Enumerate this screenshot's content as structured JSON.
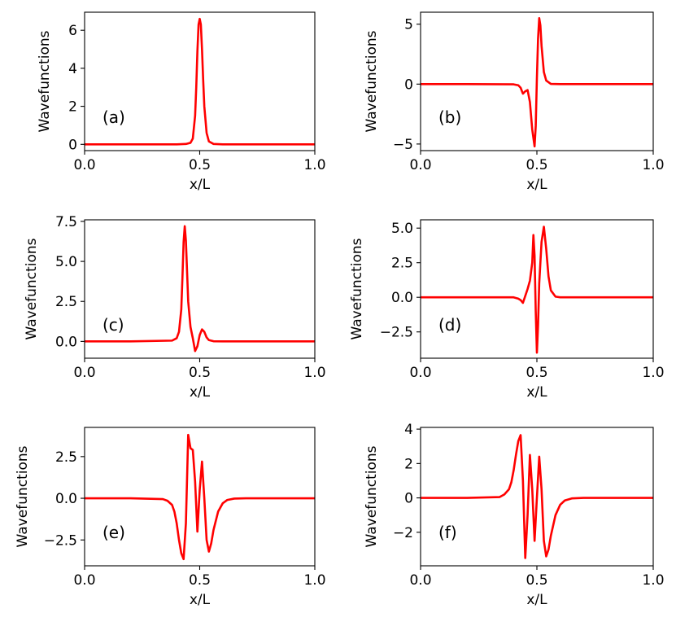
{
  "figure": {
    "type": "line",
    "grid": "none",
    "line_color": "#ff0000",
    "axes_color": "#000000",
    "background": "#ffffff"
  },
  "chart_data": [
    {
      "type": "line",
      "panel_label": "(a)",
      "xlabel": "x/L",
      "ylabel": "Wavefunctions",
      "xlim": [
        0.0,
        1.0
      ],
      "ylim": [
        -0.33,
        6.95
      ],
      "xticks": [
        0.0,
        0.5,
        1.0
      ],
      "xtick_labels": [
        "0.0",
        "0.5",
        "1.0"
      ],
      "yticks": [
        0,
        2,
        4,
        6
      ],
      "ytick_labels": [
        "0",
        "2",
        "4",
        "6"
      ],
      "color": "#ff0000",
      "x": [
        0.0,
        0.2,
        0.4,
        0.44,
        0.46,
        0.47,
        0.48,
        0.485,
        0.49,
        0.495,
        0.5,
        0.505,
        0.51,
        0.515,
        0.52,
        0.53,
        0.54,
        0.56,
        0.6,
        0.8,
        1.0
      ],
      "y": [
        0,
        0,
        0,
        0.02,
        0.08,
        0.3,
        1.5,
        3.0,
        4.9,
        6.3,
        6.6,
        6.3,
        5.0,
        3.4,
        2.0,
        0.6,
        0.15,
        0.02,
        0,
        0,
        0
      ]
    },
    {
      "type": "line",
      "panel_label": "(b)",
      "xlabel": "x/L",
      "ylabel": "Wavefunctions",
      "xlim": [
        0.0,
        1.0
      ],
      "ylim": [
        -5.55,
        6.0
      ],
      "xticks": [
        0.0,
        0.5,
        1.0
      ],
      "xtick_labels": [
        "0.0",
        "0.5",
        "1.0"
      ],
      "yticks": [
        -5,
        0,
        5
      ],
      "ytick_labels": [
        "−5",
        "0",
        "5"
      ],
      "color": "#ff0000",
      "x": [
        0.0,
        0.2,
        0.4,
        0.42,
        0.43,
        0.44,
        0.45,
        0.46,
        0.47,
        0.48,
        0.49,
        0.495,
        0.5,
        0.505,
        0.51,
        0.515,
        0.52,
        0.53,
        0.54,
        0.56,
        0.6,
        0.8,
        1.0
      ],
      "y": [
        0,
        0,
        -0.02,
        -0.1,
        -0.3,
        -0.8,
        -0.6,
        -0.5,
        -1.5,
        -3.8,
        -5.2,
        -3.5,
        0.5,
        3.8,
        5.5,
        4.9,
        3.2,
        1.0,
        0.3,
        0.02,
        0,
        0,
        0
      ]
    },
    {
      "type": "line",
      "panel_label": "(c)",
      "xlabel": "x/L",
      "ylabel": "Wavefunctions",
      "xlim": [
        0.0,
        1.0
      ],
      "ylim": [
        -1.05,
        7.6
      ],
      "xticks": [
        0.0,
        0.5,
        1.0
      ],
      "xtick_labels": [
        "0.0",
        "0.5",
        "1.0"
      ],
      "yticks": [
        0.0,
        2.5,
        5.0,
        7.5
      ],
      "ytick_labels": [
        "0.0",
        "2.5",
        "5.0",
        "7.5"
      ],
      "color": "#ff0000",
      "x": [
        0.0,
        0.2,
        0.38,
        0.4,
        0.41,
        0.42,
        0.425,
        0.43,
        0.435,
        0.44,
        0.45,
        0.46,
        0.47,
        0.48,
        0.49,
        0.5,
        0.51,
        0.52,
        0.53,
        0.54,
        0.56,
        0.6,
        0.8,
        1.0
      ],
      "y": [
        0,
        0,
        0.05,
        0.2,
        0.6,
        2.0,
        4.0,
        6.2,
        7.2,
        6.3,
        2.5,
        0.9,
        0.2,
        -0.6,
        -0.3,
        0.4,
        0.75,
        0.6,
        0.25,
        0.08,
        0.01,
        0,
        0,
        0
      ]
    },
    {
      "type": "line",
      "panel_label": "(d)",
      "xlabel": "x/L",
      "ylabel": "Wavefunctions",
      "xlim": [
        0.0,
        1.0
      ],
      "ylim": [
        -4.4,
        5.6
      ],
      "xticks": [
        0.0,
        0.5,
        1.0
      ],
      "xtick_labels": [
        "0.0",
        "0.5",
        "1.0"
      ],
      "yticks": [
        -2.5,
        0.0,
        2.5,
        5.0
      ],
      "ytick_labels": [
        "−2.5",
        "0.0",
        "2.5",
        "5.0"
      ],
      "color": "#ff0000",
      "x": [
        0.0,
        0.2,
        0.4,
        0.42,
        0.43,
        0.44,
        0.45,
        0.46,
        0.47,
        0.48,
        0.485,
        0.49,
        0.495,
        0.5,
        0.505,
        0.51,
        0.52,
        0.53,
        0.54,
        0.55,
        0.56,
        0.58,
        0.6,
        0.8,
        1.0
      ],
      "y": [
        0,
        0,
        0,
        -0.1,
        -0.2,
        -0.4,
        0.1,
        0.6,
        1.2,
        2.5,
        4.5,
        3.0,
        -1.0,
        -4.0,
        -2.0,
        1.0,
        4.0,
        5.1,
        3.5,
        1.5,
        0.5,
        0.05,
        0,
        0,
        0
      ]
    },
    {
      "type": "line",
      "panel_label": "(e)",
      "xlabel": "x/L",
      "ylabel": "Wavefunctions",
      "xlim": [
        0.0,
        1.0
      ],
      "ylim": [
        -4.05,
        4.25
      ],
      "xticks": [
        0.0,
        0.5,
        1.0
      ],
      "xtick_labels": [
        "0.0",
        "0.5",
        "1.0"
      ],
      "yticks": [
        -2.5,
        0.0,
        2.5
      ],
      "ytick_labels": [
        "−2.5",
        "0.0",
        "2.5"
      ],
      "color": "#ff0000",
      "x": [
        0.0,
        0.2,
        0.34,
        0.36,
        0.38,
        0.39,
        0.4,
        0.41,
        0.42,
        0.43,
        0.44,
        0.45,
        0.46,
        0.47,
        0.48,
        0.49,
        0.5,
        0.51,
        0.52,
        0.53,
        0.54,
        0.55,
        0.56,
        0.58,
        0.6,
        0.62,
        0.65,
        0.7,
        0.8,
        1.0
      ],
      "y": [
        0,
        0,
        -0.05,
        -0.15,
        -0.4,
        -0.8,
        -1.5,
        -2.5,
        -3.3,
        -3.65,
        -1.5,
        3.8,
        3.0,
        2.9,
        1.0,
        -2.0,
        0.5,
        2.2,
        0.0,
        -2.5,
        -3.2,
        -2.7,
        -1.9,
        -0.8,
        -0.3,
        -0.1,
        -0.02,
        0,
        0,
        0
      ]
    },
    {
      "type": "line",
      "panel_label": "(f)",
      "xlabel": "x/L",
      "ylabel": "Wavefunctions",
      "xlim": [
        0.0,
        1.0
      ],
      "ylim": [
        -3.95,
        4.1
      ],
      "xticks": [
        0.0,
        0.5,
        1.0
      ],
      "xtick_labels": [
        "0.0",
        "0.5",
        "1.0"
      ],
      "yticks": [
        -2,
        0,
        2,
        4
      ],
      "ytick_labels": [
        "−2",
        "0",
        "2",
        "4"
      ],
      "color": "#ff0000",
      "x": [
        0.0,
        0.2,
        0.34,
        0.36,
        0.38,
        0.39,
        0.4,
        0.41,
        0.42,
        0.43,
        0.44,
        0.45,
        0.46,
        0.47,
        0.48,
        0.49,
        0.5,
        0.51,
        0.52,
        0.53,
        0.54,
        0.55,
        0.56,
        0.58,
        0.6,
        0.62,
        0.65,
        0.7,
        0.8,
        1.0
      ],
      "y": [
        0,
        0,
        0.05,
        0.2,
        0.5,
        0.9,
        1.6,
        2.5,
        3.3,
        3.65,
        1.0,
        -3.5,
        -1.0,
        2.5,
        0.5,
        -2.5,
        0.0,
        2.4,
        0.5,
        -2.5,
        -3.4,
        -3.0,
        -2.2,
        -1.0,
        -0.4,
        -0.15,
        -0.03,
        0,
        0,
        0
      ]
    }
  ]
}
